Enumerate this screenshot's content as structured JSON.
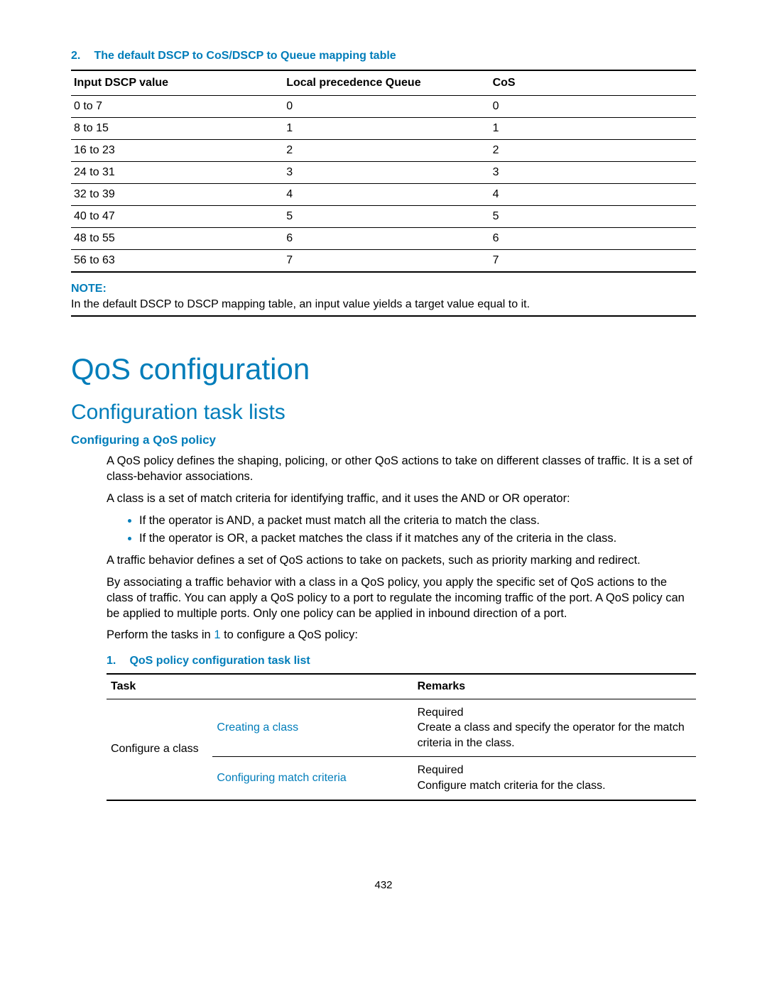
{
  "colors": {
    "accent": "#007dba",
    "text": "#000000",
    "background": "#ffffff"
  },
  "dscp_table": {
    "caption_num": "2.",
    "caption": "The default DSCP to CoS/DSCP to Queue mapping table",
    "columns": [
      "Input DSCP value",
      "Local precedence Queue",
      "CoS"
    ],
    "rows": [
      [
        "0 to 7",
        "0",
        "0"
      ],
      [
        "8 to 15",
        "1",
        "1"
      ],
      [
        "16 to 23",
        "2",
        "2"
      ],
      [
        "24 to 31",
        "3",
        "3"
      ],
      [
        "32 to 39",
        "4",
        "4"
      ],
      [
        "40 to 47",
        "5",
        "5"
      ],
      [
        "48 to 55",
        "6",
        "6"
      ],
      [
        "56 to 63",
        "7",
        "7"
      ]
    ]
  },
  "note": {
    "label": "NOTE:",
    "text": "In the default DSCP to DSCP mapping table, an input value yields a target value equal to it."
  },
  "headings": {
    "h1": "QoS configuration",
    "h2": "Configuration task lists",
    "h3": "Configuring a QoS policy"
  },
  "paragraphs": {
    "p1": "A QoS policy defines the shaping, policing, or other QoS actions to take on different classes of traffic. It is a set of class-behavior associations.",
    "p2": "A class is a set of match criteria for identifying traffic, and it uses the AND or OR operator:",
    "bullet1": "If the operator is AND, a packet must match all the criteria to match the class.",
    "bullet2": "If the operator is OR, a packet matches the class if it matches any of the criteria in the class.",
    "p3": "A traffic behavior defines a set of QoS actions to take on packets, such as priority marking and redirect.",
    "p4": "By associating a traffic behavior with a class in a QoS policy, you apply the specific set of QoS actions to the class of traffic. You can apply a QoS policy to a port to regulate the incoming traffic of the port. A QoS policy can be applied to multiple ports. Only one policy can be applied in inbound direction of a port.",
    "p5_pre": "Perform the tasks in ",
    "p5_link": "1",
    "p5_post": " to configure a QoS policy:"
  },
  "task_table": {
    "caption_num": "1.",
    "caption": "QoS policy configuration task list",
    "columns": [
      "Task",
      "Remarks"
    ],
    "group_label": "Configure a class",
    "rows": [
      {
        "link": "Creating a class",
        "remark_title": "Required",
        "remark_body": "Create a class and specify the operator for the match criteria in the class."
      },
      {
        "link": "Configuring match criteria",
        "remark_title": "Required",
        "remark_body": "Configure match criteria for the class."
      }
    ]
  },
  "page_number": "432"
}
